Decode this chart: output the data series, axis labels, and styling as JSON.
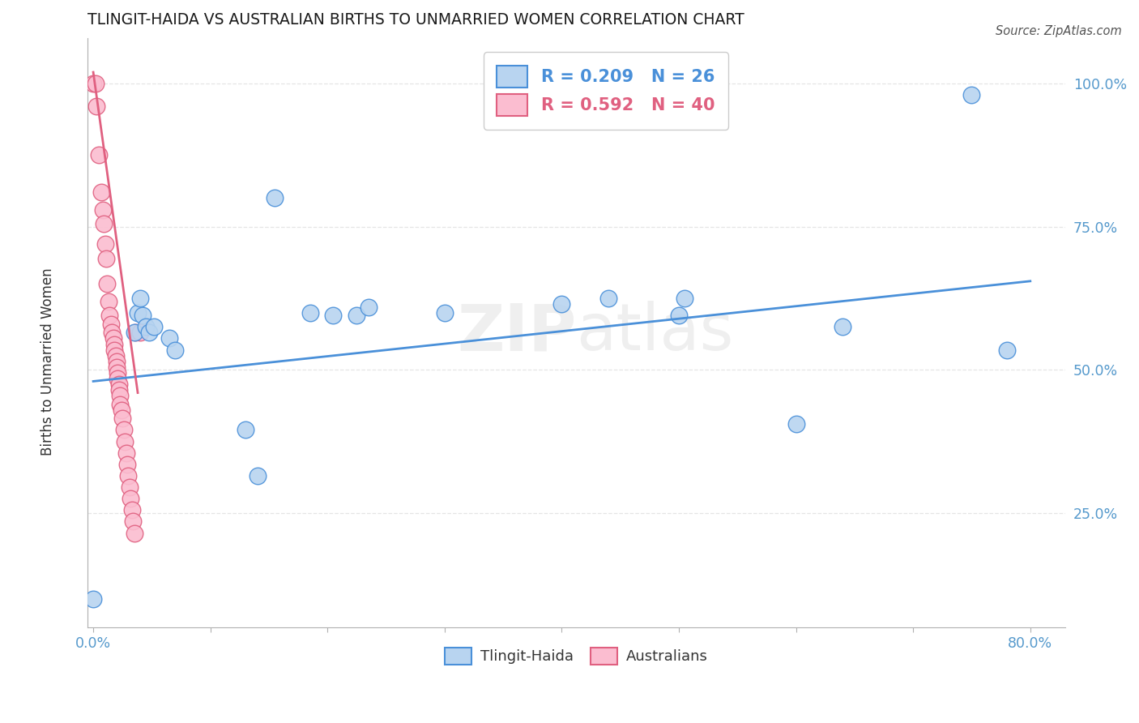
{
  "title": "TLINGIT-HAIDA VS AUSTRALIAN BIRTHS TO UNMARRIED WOMEN CORRELATION CHART",
  "source": "Source: ZipAtlas.com",
  "ylabel": "Births to Unmarried Women",
  "xlim": [
    -0.005,
    0.83
  ],
  "ylim": [
    0.05,
    1.08
  ],
  "legend_entries": [
    {
      "label": "R = 0.209   N = 26"
    },
    {
      "label": "R = 0.592   N = 40"
    }
  ],
  "bottom_legend": [
    {
      "label": "Tlingit-Haida"
    },
    {
      "label": "Australians"
    }
  ],
  "watermark": "ZIPatlas",
  "tlingit_scatter": [
    [
      0.0,
      0.1
    ],
    [
      0.035,
      0.565
    ],
    [
      0.038,
      0.6
    ],
    [
      0.04,
      0.625
    ],
    [
      0.042,
      0.595
    ],
    [
      0.045,
      0.575
    ],
    [
      0.048,
      0.565
    ],
    [
      0.052,
      0.575
    ],
    [
      0.065,
      0.555
    ],
    [
      0.07,
      0.535
    ],
    [
      0.13,
      0.395
    ],
    [
      0.14,
      0.315
    ],
    [
      0.155,
      0.8
    ],
    [
      0.185,
      0.6
    ],
    [
      0.205,
      0.595
    ],
    [
      0.225,
      0.595
    ],
    [
      0.235,
      0.61
    ],
    [
      0.3,
      0.6
    ],
    [
      0.4,
      0.615
    ],
    [
      0.44,
      0.625
    ],
    [
      0.5,
      0.595
    ],
    [
      0.505,
      0.625
    ],
    [
      0.6,
      0.405
    ],
    [
      0.64,
      0.575
    ],
    [
      0.75,
      0.98
    ],
    [
      0.78,
      0.535
    ]
  ],
  "australian_scatter": [
    [
      0.0,
      1.0
    ],
    [
      0.002,
      1.0
    ],
    [
      0.003,
      0.96
    ],
    [
      0.005,
      0.875
    ],
    [
      0.007,
      0.81
    ],
    [
      0.008,
      0.78
    ],
    [
      0.009,
      0.755
    ],
    [
      0.01,
      0.72
    ],
    [
      0.011,
      0.695
    ],
    [
      0.012,
      0.65
    ],
    [
      0.013,
      0.62
    ],
    [
      0.014,
      0.595
    ],
    [
      0.015,
      0.58
    ],
    [
      0.016,
      0.565
    ],
    [
      0.017,
      0.555
    ],
    [
      0.018,
      0.545
    ],
    [
      0.018,
      0.535
    ],
    [
      0.019,
      0.525
    ],
    [
      0.02,
      0.515
    ],
    [
      0.02,
      0.505
    ],
    [
      0.021,
      0.495
    ],
    [
      0.021,
      0.485
    ],
    [
      0.022,
      0.475
    ],
    [
      0.022,
      0.465
    ],
    [
      0.023,
      0.455
    ],
    [
      0.023,
      0.44
    ],
    [
      0.024,
      0.43
    ],
    [
      0.025,
      0.415
    ],
    [
      0.026,
      0.395
    ],
    [
      0.027,
      0.375
    ],
    [
      0.028,
      0.355
    ],
    [
      0.029,
      0.335
    ],
    [
      0.03,
      0.315
    ],
    [
      0.031,
      0.295
    ],
    [
      0.032,
      0.275
    ],
    [
      0.033,
      0.255
    ],
    [
      0.034,
      0.235
    ],
    [
      0.035,
      0.215
    ],
    [
      0.036,
      0.565
    ],
    [
      0.04,
      0.565
    ]
  ],
  "blue_line": {
    "x": [
      0.0,
      0.8
    ],
    "y": [
      0.48,
      0.655
    ]
  },
  "pink_line": {
    "x": [
      0.0,
      0.038
    ],
    "y": [
      1.02,
      0.46
    ]
  },
  "title_color": "#1a1a1a",
  "scatter_blue_color": "#b8d4f0",
  "scatter_pink_color": "#fbbdd0",
  "line_blue_color": "#4a90d9",
  "line_pink_color": "#e06080",
  "grid_color": "#e5e5e5",
  "axis_tick_color": "#5599cc",
  "background_color": "#ffffff",
  "title_fontsize": 13.5,
  "tick_fontsize": 12.5,
  "ylabel_fontsize": 12
}
